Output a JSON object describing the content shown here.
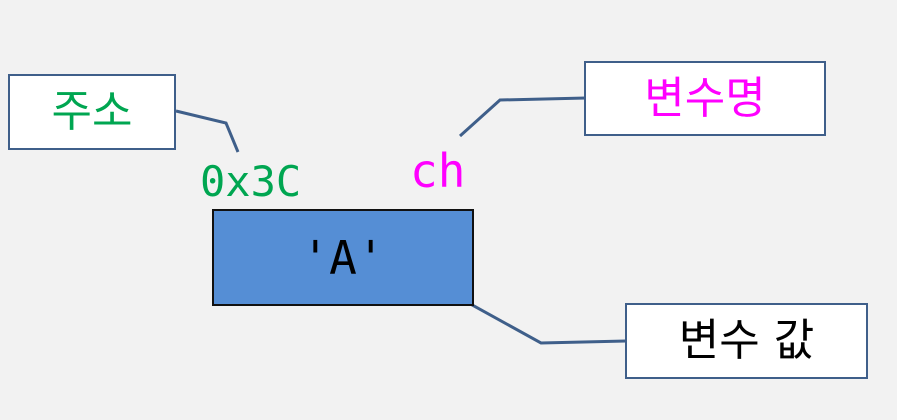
{
  "labels": {
    "address_title": "주소",
    "variable_name_title": "변수명",
    "variable_value_title": "변수 값"
  },
  "memory": {
    "address": "0x3C",
    "variable_name": "ch",
    "value": "'A'"
  },
  "colors": {
    "background": "#f2f2f2",
    "address": "#00a651",
    "variable_name": "#ff00ff",
    "value_text": "#000000",
    "cell_fill": "#558ed5",
    "connector": "#3f5f8a"
  }
}
